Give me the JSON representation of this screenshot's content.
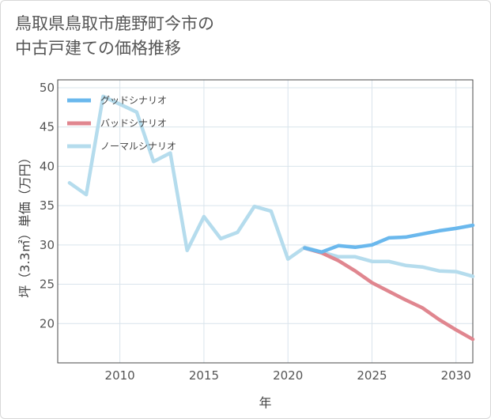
{
  "title": "鳥取県鳥取市鹿野町今市の\n中古戸建ての価格推移",
  "chart_data": {
    "type": "line",
    "xlabel": "年",
    "ylabel": "坪（3.3㎡）単価（万円）",
    "xlim": [
      2006.3,
      2031.0
    ],
    "ylim": [
      15,
      51
    ],
    "xticks": [
      2010,
      2015,
      2020,
      2025,
      2030
    ],
    "yticks": [
      20,
      25,
      30,
      35,
      40,
      45,
      50
    ],
    "series": [
      {
        "name": "グッドシナリオ",
        "color": "#6ab8ed",
        "x": [
          2021,
          2022,
          2023,
          2024,
          2025,
          2026,
          2027,
          2028,
          2029,
          2030,
          2031
        ],
        "y": [
          29.6,
          29.1,
          29.9,
          29.7,
          30.0,
          30.9,
          31.0,
          31.4,
          31.8,
          32.1,
          32.5
        ]
      },
      {
        "name": "バッドシナリオ",
        "color": "#e0868f",
        "x": [
          2021,
          2022,
          2023,
          2024,
          2025,
          2026,
          2027,
          2028,
          2029,
          2030,
          2031
        ],
        "y": [
          29.6,
          29.0,
          28.0,
          26.7,
          25.2,
          24.1,
          23.0,
          22.0,
          20.5,
          19.2,
          18.0
        ]
      },
      {
        "name": "ノーマルシナリオ",
        "color": "#b5dced",
        "x": [
          2007,
          2008,
          2009,
          2010,
          2011,
          2012,
          2013,
          2014,
          2015,
          2016,
          2017,
          2018,
          2019,
          2020,
          2021,
          2022,
          2023,
          2024,
          2025,
          2026,
          2027,
          2028,
          2029,
          2030,
          2031
        ],
        "y": [
          37.9,
          36.4,
          48.9,
          47.9,
          46.9,
          40.6,
          41.7,
          29.3,
          33.6,
          30.8,
          31.6,
          34.9,
          34.3,
          28.2,
          29.7,
          29.1,
          28.5,
          28.5,
          27.9,
          27.9,
          27.4,
          27.2,
          26.7,
          26.6,
          26.0
        ]
      }
    ],
    "legend": "top-left"
  }
}
